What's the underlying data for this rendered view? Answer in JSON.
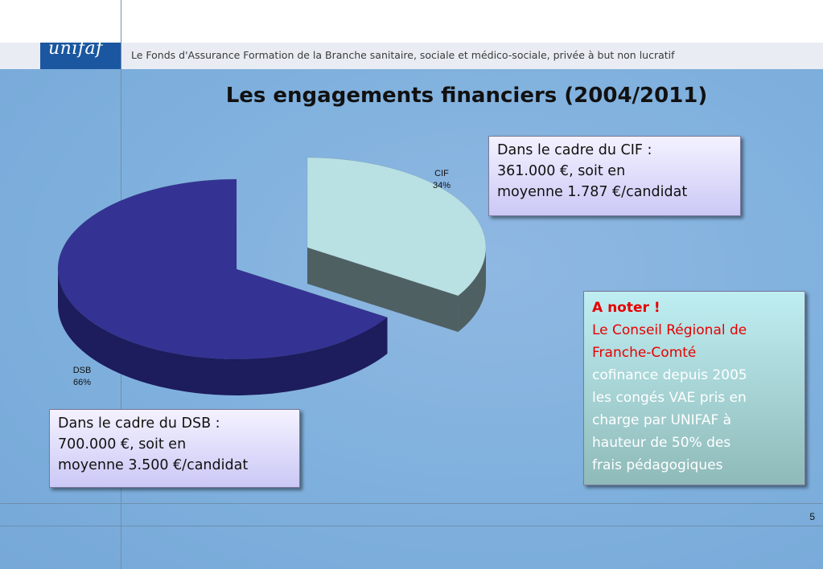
{
  "header": {
    "logo_text": "unifaf",
    "tagline": "Le Fonds d'Assurance Formation de la Branche sanitaire, sociale et médico-sociale, privée à but non lucratif"
  },
  "slide": {
    "title": "Les engagements financiers (2004/2011)",
    "page_number": "5"
  },
  "chart_data": {
    "type": "pie",
    "title": "",
    "slices": [
      {
        "label": "CIF",
        "value": 34,
        "value_label": "34%",
        "color": "#b9e0e3"
      },
      {
        "label": "DSB",
        "value": 66,
        "value_label": "66%",
        "color": "#343393"
      }
    ],
    "three_d": true,
    "exploded": true
  },
  "boxes": {
    "cif": {
      "line1": "Dans le cadre du CIF :",
      "line2": "361.000 €, soit en",
      "line3": "moyenne 1.787 €/candidat"
    },
    "dsb": {
      "line1": "Dans le cadre du DSB :",
      "line2": "700.000 €, soit en",
      "line3": "moyenne 3.500 €/candidat"
    },
    "note": {
      "title": "A noter !",
      "red_line1": "Le Conseil Régional de",
      "red_line2": "Franche-Comté",
      "lines": [
        "cofinance depuis 2005",
        "les congés VAE pris en",
        "charge par UNIFAF à",
        "hauteur de 50% des",
        "frais pédagogiques"
      ]
    }
  }
}
